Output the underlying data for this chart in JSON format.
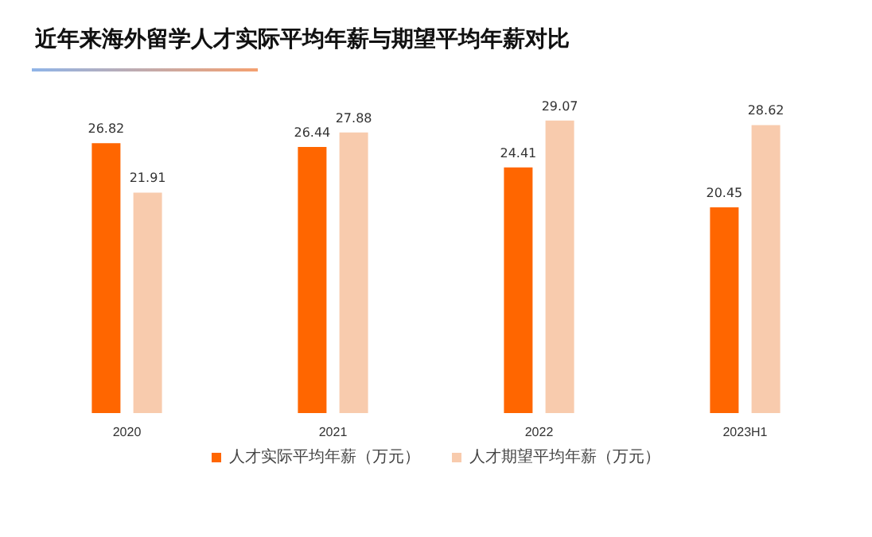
{
  "chart_data": {
    "type": "bar",
    "title": "近年来海外留学人才实际平均年薪与期望平均年薪对比",
    "categories": [
      "2020",
      "2021",
      "2022",
      "2023H1"
    ],
    "series": [
      {
        "name": "人才实际平均年薪（万元）",
        "color": "#ff6600",
        "values": [
          26.82,
          26.44,
          24.41,
          20.45
        ]
      },
      {
        "name": "人才期望平均年薪（万元）",
        "color": "#f8cbad",
        "values": [
          21.91,
          27.88,
          29.07,
          28.62
        ]
      }
    ],
    "data_labels": true,
    "legend": "bottom",
    "tick_labels": "x"
  }
}
